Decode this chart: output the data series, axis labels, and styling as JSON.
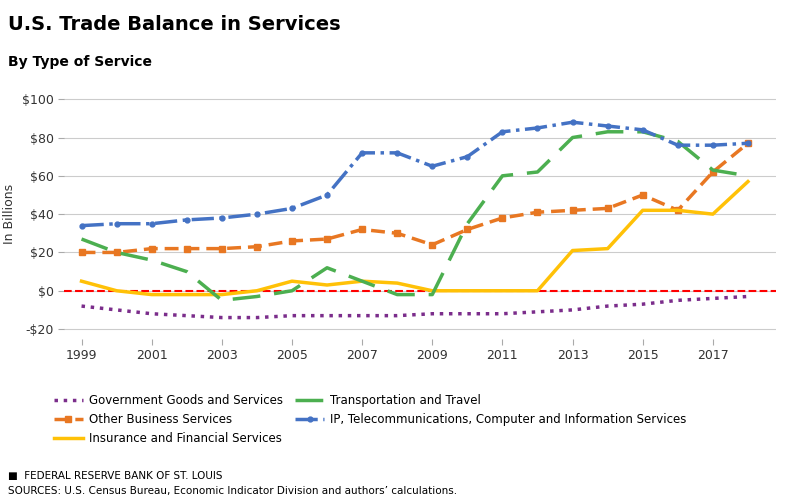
{
  "title": "U.S. Trade Balance in Services",
  "subtitle": "By Type of Service",
  "ylabel": "In Billions",
  "source1": "■  FEDERAL RESERVE BANK OF ST. LOUIS",
  "source2": "SOURCES: U.S. Census Bureau, Economic Indicator Division and authors’ calculations.",
  "years": [
    1999,
    2000,
    2001,
    2002,
    2003,
    2004,
    2005,
    2006,
    2007,
    2008,
    2009,
    2010,
    2011,
    2012,
    2013,
    2014,
    2015,
    2016,
    2017,
    2018
  ],
  "gov_goods": [
    -8,
    -10,
    -12,
    -13,
    -14,
    -14,
    -13,
    -13,
    -13,
    -13,
    -12,
    -12,
    -12,
    -11,
    -10,
    -8,
    -7,
    -5,
    -4,
    -3
  ],
  "other_business": [
    20,
    20,
    22,
    22,
    22,
    23,
    26,
    27,
    32,
    30,
    24,
    32,
    38,
    41,
    42,
    43,
    50,
    42,
    62,
    77
  ],
  "insurance": [
    5,
    0,
    -2,
    -2,
    -2,
    0,
    5,
    3,
    5,
    4,
    0,
    0,
    0,
    0,
    21,
    22,
    42,
    42,
    40,
    57
  ],
  "transport_travel": [
    27,
    20,
    16,
    10,
    -5,
    -3,
    0,
    12,
    5,
    -2,
    -2,
    35,
    60,
    62,
    80,
    83,
    83,
    78,
    63,
    60
  ],
  "ip_telecom": [
    34,
    35,
    35,
    37,
    38,
    40,
    43,
    50,
    72,
    72,
    65,
    70,
    83,
    85,
    88,
    86,
    84,
    76,
    76,
    77
  ],
  "series_colors": {
    "gov_goods": "#7B2D8B",
    "other_business": "#E87722",
    "insurance": "#FFC107",
    "transport_travel": "#4CAF50",
    "ip_telecom": "#4472C4"
  },
  "ylim": [
    -25,
    105
  ],
  "yticks": [
    -20,
    0,
    20,
    40,
    60,
    80,
    100
  ],
  "ytick_labels": [
    "-$20",
    "$0",
    "$20",
    "$40",
    "$60",
    "$80",
    "$100"
  ],
  "xticks": [
    1999,
    2001,
    2003,
    2005,
    2007,
    2009,
    2011,
    2013,
    2015,
    2017
  ],
  "background_color": "#ffffff",
  "grid_color": "#cccccc"
}
